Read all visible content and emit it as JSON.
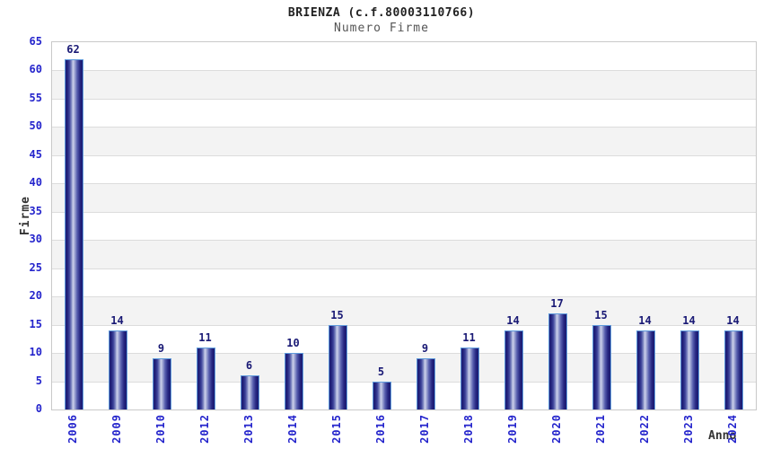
{
  "chart_data": {
    "type": "bar",
    "title": "BRIENZA (c.f.80003110766)",
    "subtitle": "Numero Firme",
    "xlabel": "Anno",
    "ylabel": "Firme",
    "categories": [
      "2006",
      "2009",
      "2010",
      "2012",
      "2013",
      "2014",
      "2015",
      "2016",
      "2017",
      "2018",
      "2019",
      "2020",
      "2021",
      "2022",
      "2023",
      "2024"
    ],
    "values": [
      62,
      14,
      9,
      11,
      6,
      10,
      15,
      5,
      9,
      11,
      14,
      17,
      15,
      14,
      14,
      14
    ],
    "ylim": [
      0,
      65
    ],
    "ytick_step": 5,
    "grid": "horizontal gridlines with alternating white/gray bands",
    "legend": "none",
    "colors": {
      "tick_label": "#2424cc",
      "value_label": "#191975",
      "bar_dark": "#1c1c74",
      "bar_highlight": "#ccd1ea",
      "bar_border": "#5f9bdc",
      "band_gray": "#f3f3f3",
      "gridline": "#dcdcdc",
      "plot_border": "#c9c9c9",
      "title": "#222222",
      "subtitle": "#555555",
      "axis_title": "#333333",
      "background": "#ffffff"
    }
  }
}
